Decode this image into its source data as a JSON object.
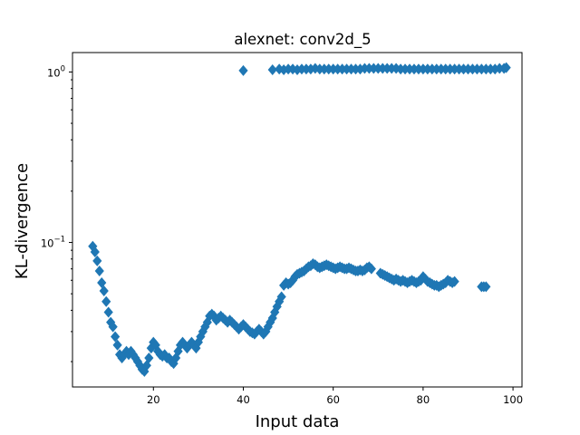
{
  "chart_data": {
    "type": "scatter",
    "title": "alexnet: conv2d_5",
    "xlabel": "Input data",
    "ylabel": "KL-divergence",
    "xlim": [
      2,
      102
    ],
    "ylim": [
      0.0142,
      1.3
    ],
    "yscale": "log",
    "grid": false,
    "legend": "none",
    "marker": "diamond",
    "color": "#1f77b4",
    "x_ticks": [
      {
        "value": 20,
        "label": "20"
      },
      {
        "value": 40,
        "label": "40"
      },
      {
        "value": 60,
        "label": "60"
      },
      {
        "value": 80,
        "label": "80"
      },
      {
        "value": 100,
        "label": "100"
      }
    ],
    "y_ticks": [
      {
        "value": 1.0,
        "base": "10",
        "exp": "0"
      },
      {
        "value": 0.1,
        "base": "10",
        "exp": "−1"
      }
    ],
    "series": [
      {
        "points": [
          [
            6.5,
            0.095
          ],
          [
            7.0,
            0.088
          ],
          [
            7.5,
            0.078
          ],
          [
            8.0,
            0.068
          ],
          [
            8.5,
            0.058
          ],
          [
            9.0,
            0.052
          ],
          [
            9.5,
            0.045
          ],
          [
            10.0,
            0.039
          ],
          [
            10.5,
            0.034
          ],
          [
            11.0,
            0.032
          ],
          [
            11.5,
            0.028
          ],
          [
            12.0,
            0.025
          ],
          [
            12.5,
            0.022
          ],
          [
            13.0,
            0.021
          ],
          [
            13.5,
            0.022
          ],
          [
            14.0,
            0.023
          ],
          [
            14.5,
            0.022
          ],
          [
            15.0,
            0.023
          ],
          [
            15.5,
            0.022
          ],
          [
            16.0,
            0.021
          ],
          [
            16.5,
            0.02
          ],
          [
            17.0,
            0.019
          ],
          [
            17.5,
            0.018
          ],
          [
            18.0,
            0.0175
          ],
          [
            18.5,
            0.019
          ],
          [
            19.0,
            0.021
          ],
          [
            19.5,
            0.024
          ],
          [
            20.0,
            0.026
          ],
          [
            20.5,
            0.025
          ],
          [
            21.0,
            0.023
          ],
          [
            21.5,
            0.022
          ],
          [
            22.0,
            0.0215
          ],
          [
            22.5,
            0.022
          ],
          [
            23.0,
            0.021
          ],
          [
            23.5,
            0.021
          ],
          [
            24.0,
            0.02
          ],
          [
            24.5,
            0.0195
          ],
          [
            25.0,
            0.021
          ],
          [
            25.5,
            0.023
          ],
          [
            26.0,
            0.025
          ],
          [
            26.5,
            0.026
          ],
          [
            27.0,
            0.025
          ],
          [
            27.5,
            0.024
          ],
          [
            28.0,
            0.025
          ],
          [
            28.5,
            0.026
          ],
          [
            29.0,
            0.025
          ],
          [
            29.5,
            0.024
          ],
          [
            30.0,
            0.026
          ],
          [
            30.5,
            0.028
          ],
          [
            31.0,
            0.03
          ],
          [
            31.5,
            0.032
          ],
          [
            32.0,
            0.034
          ],
          [
            32.5,
            0.037
          ],
          [
            33.0,
            0.038
          ],
          [
            33.5,
            0.037
          ],
          [
            34.0,
            0.035
          ],
          [
            34.5,
            0.036
          ],
          [
            35.0,
            0.037
          ],
          [
            35.5,
            0.036
          ],
          [
            36.0,
            0.035
          ],
          [
            36.5,
            0.034
          ],
          [
            37.0,
            0.035
          ],
          [
            37.5,
            0.034
          ],
          [
            38.0,
            0.033
          ],
          [
            38.5,
            0.032
          ],
          [
            39.0,
            0.031
          ],
          [
            39.5,
            0.032
          ],
          [
            40.0,
            0.033
          ],
          [
            40.5,
            0.032
          ],
          [
            41.0,
            0.031
          ],
          [
            41.5,
            0.03
          ],
          [
            42.0,
            0.0295
          ],
          [
            42.5,
            0.029
          ],
          [
            43.0,
            0.03
          ],
          [
            43.5,
            0.031
          ],
          [
            44.0,
            0.03
          ],
          [
            44.5,
            0.029
          ],
          [
            45.0,
            0.03
          ],
          [
            45.5,
            0.032
          ],
          [
            46.0,
            0.034
          ],
          [
            46.5,
            0.036
          ],
          [
            47.0,
            0.039
          ],
          [
            47.5,
            0.042
          ],
          [
            48.0,
            0.045
          ],
          [
            48.5,
            0.048
          ],
          [
            49.0,
            0.056
          ],
          [
            49.5,
            0.058
          ],
          [
            50.0,
            0.057
          ],
          [
            50.5,
            0.058
          ],
          [
            51.0,
            0.06
          ],
          [
            51.5,
            0.063
          ],
          [
            52.0,
            0.065
          ],
          [
            52.5,
            0.066
          ],
          [
            53.0,
            0.067
          ],
          [
            53.5,
            0.068
          ],
          [
            54.0,
            0.07
          ],
          [
            54.5,
            0.072
          ],
          [
            55.0,
            0.073
          ],
          [
            55.5,
            0.075
          ],
          [
            56.0,
            0.074
          ],
          [
            56.5,
            0.072
          ],
          [
            57.0,
            0.071
          ],
          [
            57.5,
            0.072
          ],
          [
            58.0,
            0.073
          ],
          [
            58.5,
            0.074
          ],
          [
            59.0,
            0.073
          ],
          [
            59.5,
            0.072
          ],
          [
            60.0,
            0.071
          ],
          [
            60.5,
            0.07
          ],
          [
            61.0,
            0.071
          ],
          [
            61.5,
            0.072
          ],
          [
            62.0,
            0.071
          ],
          [
            62.5,
            0.07
          ],
          [
            63.0,
            0.07
          ],
          [
            63.5,
            0.071
          ],
          [
            64.0,
            0.07
          ],
          [
            64.5,
            0.069
          ],
          [
            65.0,
            0.068
          ],
          [
            65.5,
            0.068
          ],
          [
            66.0,
            0.069
          ],
          [
            66.5,
            0.068
          ],
          [
            67.0,
            0.069
          ],
          [
            67.5,
            0.071
          ],
          [
            68.0,
            0.072
          ],
          [
            68.5,
            0.07
          ],
          [
            70.5,
            0.066
          ],
          [
            71.0,
            0.065
          ],
          [
            71.5,
            0.064
          ],
          [
            72.0,
            0.063
          ],
          [
            72.5,
            0.062
          ],
          [
            73.0,
            0.061
          ],
          [
            73.5,
            0.06
          ],
          [
            74.0,
            0.061
          ],
          [
            74.5,
            0.06
          ],
          [
            75.0,
            0.059
          ],
          [
            75.5,
            0.06
          ],
          [
            76.0,
            0.059
          ],
          [
            76.5,
            0.058
          ],
          [
            77.0,
            0.059
          ],
          [
            77.5,
            0.06
          ],
          [
            78.0,
            0.059
          ],
          [
            78.5,
            0.058
          ],
          [
            79.0,
            0.059
          ],
          [
            79.5,
            0.06
          ],
          [
            80.0,
            0.063
          ],
          [
            80.5,
            0.061
          ],
          [
            81.0,
            0.059
          ],
          [
            81.5,
            0.058
          ],
          [
            82.0,
            0.057
          ],
          [
            82.5,
            0.056
          ],
          [
            83.0,
            0.056
          ],
          [
            83.5,
            0.055
          ],
          [
            84.0,
            0.056
          ],
          [
            84.5,
            0.057
          ],
          [
            85.0,
            0.058
          ],
          [
            85.5,
            0.06
          ],
          [
            86.0,
            0.059
          ],
          [
            86.5,
            0.058
          ],
          [
            87.0,
            0.059
          ],
          [
            93.0,
            0.055
          ],
          [
            93.5,
            0.055
          ],
          [
            94.0,
            0.055
          ],
          [
            40.0,
            1.02
          ],
          [
            46.5,
            1.03
          ],
          [
            48.0,
            1.04
          ],
          [
            49.0,
            1.03
          ],
          [
            50.0,
            1.04
          ],
          [
            51.0,
            1.04
          ],
          [
            52.0,
            1.03
          ],
          [
            53.0,
            1.04
          ],
          [
            54.0,
            1.04
          ],
          [
            55.0,
            1.04
          ],
          [
            56.0,
            1.05
          ],
          [
            57.0,
            1.04
          ],
          [
            58.0,
            1.04
          ],
          [
            59.0,
            1.04
          ],
          [
            60.0,
            1.04
          ],
          [
            61.0,
            1.04
          ],
          [
            62.0,
            1.04
          ],
          [
            63.0,
            1.04
          ],
          [
            64.0,
            1.04
          ],
          [
            65.0,
            1.04
          ],
          [
            66.0,
            1.04
          ],
          [
            67.0,
            1.05
          ],
          [
            68.0,
            1.05
          ],
          [
            69.0,
            1.05
          ],
          [
            70.0,
            1.05
          ],
          [
            71.0,
            1.05
          ],
          [
            72.0,
            1.05
          ],
          [
            73.0,
            1.05
          ],
          [
            74.0,
            1.05
          ],
          [
            75.0,
            1.04
          ],
          [
            76.0,
            1.04
          ],
          [
            77.0,
            1.04
          ],
          [
            78.0,
            1.04
          ],
          [
            79.0,
            1.04
          ],
          [
            80.0,
            1.04
          ],
          [
            81.0,
            1.04
          ],
          [
            82.0,
            1.04
          ],
          [
            83.0,
            1.04
          ],
          [
            84.0,
            1.04
          ],
          [
            85.0,
            1.04
          ],
          [
            86.0,
            1.04
          ],
          [
            87.0,
            1.04
          ],
          [
            88.0,
            1.04
          ],
          [
            89.0,
            1.04
          ],
          [
            90.0,
            1.04
          ],
          [
            91.0,
            1.04
          ],
          [
            92.0,
            1.04
          ],
          [
            93.0,
            1.04
          ],
          [
            94.0,
            1.04
          ],
          [
            95.0,
            1.04
          ],
          [
            96.0,
            1.04
          ],
          [
            97.0,
            1.05
          ],
          [
            98.0,
            1.05
          ],
          [
            98.5,
            1.06
          ]
        ]
      }
    ]
  }
}
